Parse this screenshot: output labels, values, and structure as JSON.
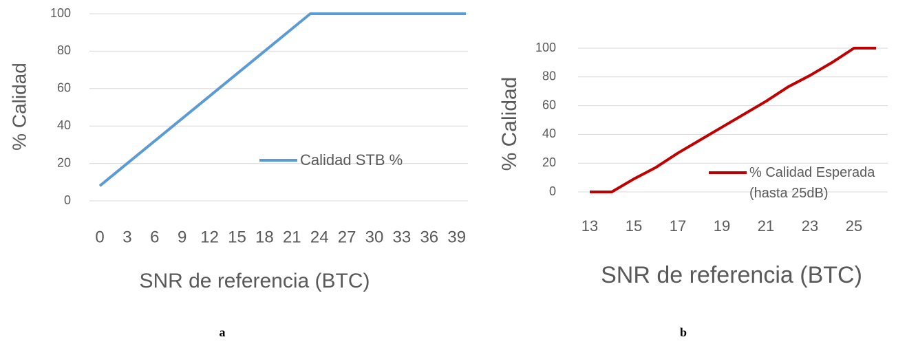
{
  "chart_data": [
    {
      "type": "line",
      "ylabel": "% Calidad",
      "xlabel": "SNR de referencia  (BTC)",
      "categories": [
        0,
        null,
        null,
        3,
        null,
        null,
        6,
        null,
        null,
        9,
        null,
        null,
        12,
        null,
        null,
        15,
        null,
        null,
        18,
        null,
        null,
        21,
        null,
        null,
        24,
        null,
        null,
        27,
        null,
        null,
        30,
        null,
        null,
        33,
        null,
        null,
        36,
        null,
        null,
        39,
        null
      ],
      "series": [
        {
          "name": "Calidad STB %",
          "color": "#5b9bd5",
          "values": [
            8,
            12,
            16,
            20,
            24,
            28,
            32,
            36,
            40,
            44,
            48,
            52,
            56,
            60,
            64,
            68,
            72,
            76,
            80,
            84,
            88,
            92,
            96,
            100,
            100,
            100,
            100,
            100,
            100,
            100,
            100,
            100,
            100,
            100,
            100,
            100,
            100,
            100,
            100,
            100,
            100
          ]
        }
      ],
      "ylim": [
        0,
        100
      ],
      "yticks": [
        0,
        20,
        40,
        60,
        80,
        100
      ],
      "grid": true
    },
    {
      "type": "line",
      "ylabel": "% Calidad",
      "xlabel": "SNR de referencia  (BTC)",
      "categories": [
        13,
        null,
        15,
        null,
        17,
        null,
        19,
        null,
        21,
        null,
        23,
        null,
        25,
        null
      ],
      "series": [
        {
          "name": "% Calidad Esperada (hasta 25dB)",
          "color": "#c00000",
          "values": [
            0,
            0,
            9,
            17,
            27,
            36,
            45,
            54,
            63,
            73,
            81,
            90,
            100,
            100
          ]
        }
      ],
      "ylim": [
        0,
        100
      ],
      "yticks": [
        0,
        20,
        40,
        60,
        80,
        100
      ],
      "grid": true
    }
  ],
  "captions": [
    "a",
    "b"
  ]
}
